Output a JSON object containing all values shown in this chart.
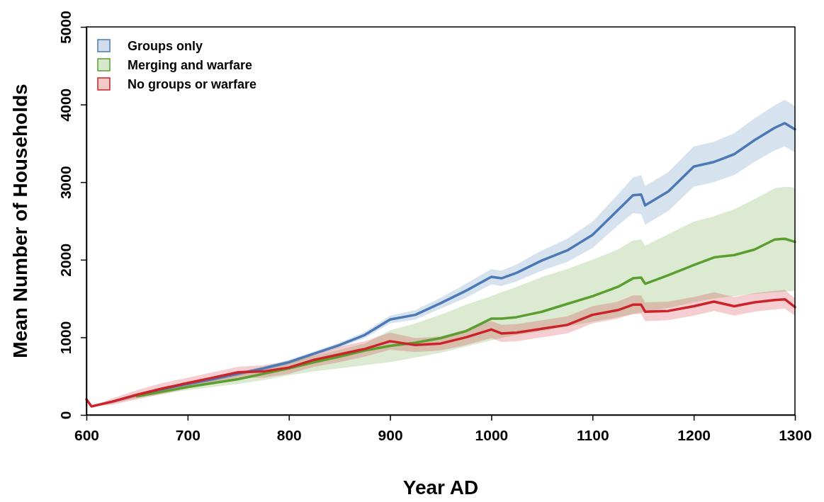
{
  "chart_data": {
    "type": "line",
    "xlabel": "Year AD",
    "ylabel": "Mean Number of Households",
    "x": [
      600,
      605,
      625,
      650,
      675,
      700,
      725,
      750,
      775,
      800,
      825,
      850,
      875,
      900,
      925,
      950,
      975,
      1000,
      1010,
      1025,
      1050,
      1075,
      1100,
      1125,
      1140,
      1148,
      1152,
      1175,
      1200,
      1220,
      1240,
      1260,
      1280,
      1290,
      1300
    ],
    "xlim": [
      600,
      1300
    ],
    "xticks": [
      600,
      700,
      800,
      900,
      1000,
      1100,
      1200,
      1300
    ],
    "ylim": [
      0,
      5000
    ],
    "yticks": [
      0,
      1000,
      2000,
      3000,
      4000,
      5000
    ],
    "grid": false,
    "legend": "top left",
    "marker": "none",
    "line_style": "solid",
    "series": [
      {
        "name": "Groups only",
        "color": "#4a79b5",
        "values": [
          null,
          null,
          null,
          250,
          330,
          400,
          460,
          530,
          600,
          680,
          790,
          900,
          1030,
          1230,
          1290,
          1440,
          1600,
          1780,
          1760,
          1830,
          1990,
          2120,
          2320,
          2640,
          2830,
          2840,
          2700,
          2880,
          3200,
          3260,
          3360,
          3540,
          3700,
          3760,
          3680
        ],
        "lower": [
          200,
          110,
          145,
          230,
          305,
          375,
          435,
          505,
          575,
          650,
          760,
          870,
          990,
          1180,
          1230,
          1370,
          1510,
          1680,
          1660,
          1720,
          1860,
          1970,
          2150,
          2440,
          2600,
          2590,
          2450,
          2630,
          2940,
          3000,
          3090,
          3260,
          3410,
          3460,
          3380
        ],
        "upper": [
          200,
          110,
          175,
          270,
          355,
          425,
          485,
          555,
          625,
          710,
          820,
          930,
          1070,
          1280,
          1350,
          1510,
          1690,
          1880,
          1860,
          1940,
          2120,
          2270,
          2490,
          2840,
          3060,
          3090,
          2950,
          3130,
          3460,
          3520,
          3630,
          3820,
          3990,
          4060,
          3980
        ]
      },
      {
        "name": "Merging and warfare",
        "color": "#5a9e2f",
        "values": [
          null,
          null,
          null,
          240,
          300,
          360,
          410,
          460,
          530,
          600,
          680,
          750,
          830,
          890,
          930,
          990,
          1080,
          1240,
          1240,
          1260,
          1330,
          1430,
          1530,
          1650,
          1760,
          1770,
          1690,
          1800,
          1930,
          2030,
          2060,
          2130,
          2260,
          2270,
          2230
        ],
        "lower": [
          200,
          110,
          150,
          220,
          270,
          320,
          360,
          400,
          450,
          510,
          560,
          600,
          640,
          680,
          740,
          800,
          880,
          960,
          990,
          1030,
          1080,
          1140,
          1200,
          1260,
          1300,
          1320,
          1330,
          1380,
          1450,
          1500,
          1530,
          1560,
          1580,
          1590,
          1600
        ],
        "upper": [
          200,
          110,
          170,
          260,
          330,
          400,
          460,
          520,
          600,
          680,
          760,
          840,
          920,
          1090,
          1180,
          1290,
          1420,
          1530,
          1580,
          1650,
          1780,
          1880,
          2000,
          2130,
          2250,
          2260,
          2180,
          2330,
          2490,
          2560,
          2650,
          2780,
          2920,
          2940,
          2930
        ]
      },
      {
        "name": "No groups or warfare",
        "color": "#cc2229",
        "values": [
          200,
          110,
          170,
          260,
          340,
          410,
          480,
          550,
          560,
          610,
          710,
          780,
          850,
          950,
          900,
          920,
          1000,
          1100,
          1050,
          1060,
          1110,
          1160,
          1290,
          1350,
          1420,
          1420,
          1330,
          1340,
          1400,
          1460,
          1400,
          1450,
          1480,
          1490,
          1390
        ],
        "lower": [
          200,
          110,
          130,
          200,
          270,
          340,
          410,
          480,
          480,
          530,
          620,
          680,
          750,
          840,
          810,
          830,
          900,
          990,
          940,
          950,
          1000,
          1050,
          1180,
          1240,
          1300,
          1300,
          1210,
          1220,
          1280,
          1340,
          1280,
          1330,
          1360,
          1370,
          1280
        ],
        "upper": [
          200,
          110,
          210,
          320,
          410,
          480,
          550,
          620,
          640,
          690,
          800,
          880,
          950,
          1060,
          990,
          1010,
          1100,
          1210,
          1160,
          1170,
          1220,
          1270,
          1400,
          1460,
          1540,
          1540,
          1450,
          1460,
          1520,
          1580,
          1520,
          1570,
          1600,
          1610,
          1500
        ]
      }
    ]
  }
}
